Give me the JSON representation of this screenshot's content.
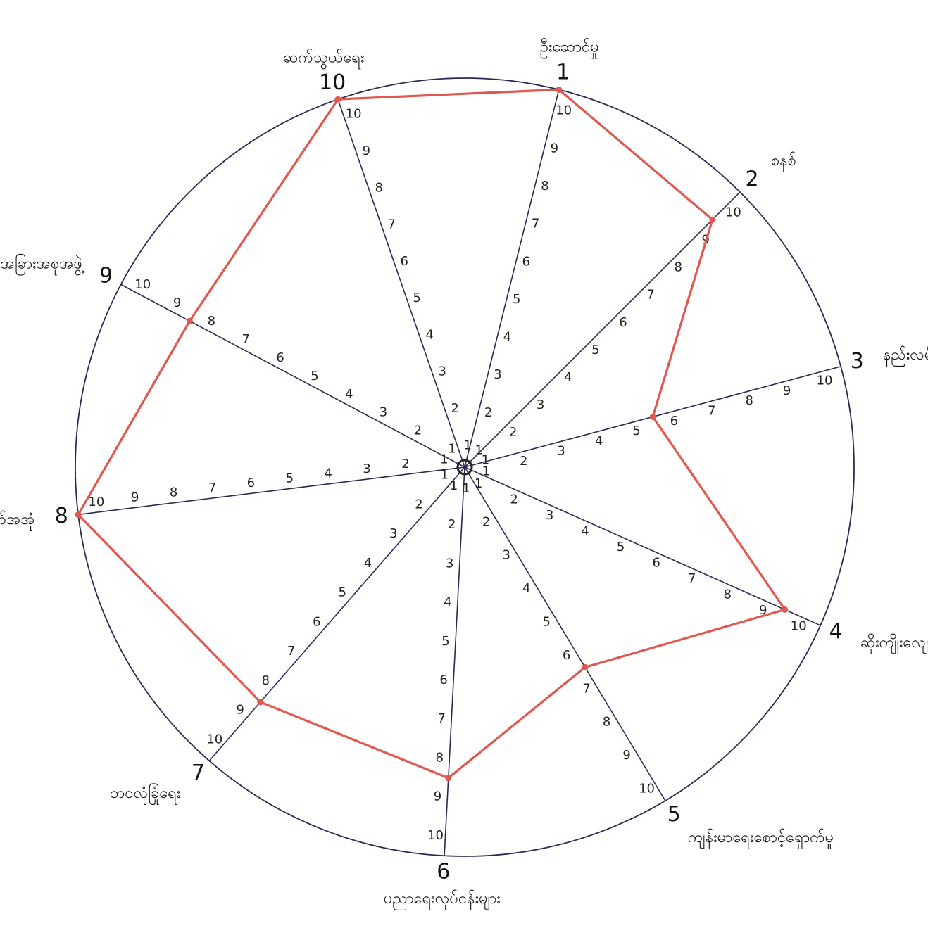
{
  "chart_data": {
    "type": "radar",
    "scale": {
      "min": 0,
      "max": 10,
      "ticks": [
        1,
        2,
        3,
        4,
        5,
        6,
        7,
        8,
        9,
        10
      ]
    },
    "center_label": "0",
    "axes": [
      {
        "number": "1",
        "label": "ဦးဆောင်မှု"
      },
      {
        "number": "2",
        "label": "စနစ်"
      },
      {
        "number": "3",
        "label": "နည်းလမ်းသုံးစွဲမှု"
      },
      {
        "number": "4",
        "label": "ဆိုးကျိုးလျော့ချမှု"
      },
      {
        "number": "5",
        "label": "ကျန်းမာရေးစောင့်ရှောက်မှု"
      },
      {
        "number": "6",
        "label": "ပညာရေးလုပ်ငန်းများ"
      },
      {
        "number": "7",
        "label": "ဘဝလုံခြုံရေး"
      },
      {
        "number": "8",
        "label": "အခြေခံအဆောက်အအုံ"
      },
      {
        "number": "9",
        "label": "အခြားအစုအဖွဲ့"
      },
      {
        "number": "10",
        "label": "ဆက်သွယ်ရေး"
      }
    ],
    "series": [
      {
        "values": [
          10,
          9,
          5,
          9,
          6,
          8,
          8,
          10,
          8,
          10
        ]
      }
    ],
    "colors": {
      "series": "#e0584f",
      "axis": "#2a2a55",
      "text": "#111111"
    }
  }
}
